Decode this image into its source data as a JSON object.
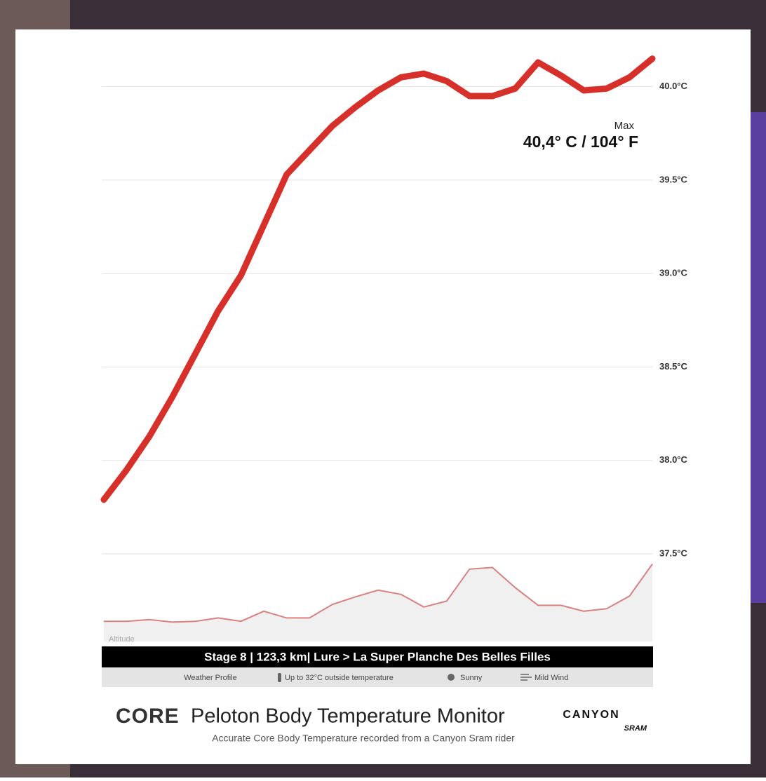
{
  "chart_data": {
    "type": "line",
    "title": "Peloton Body Temperature Monitor",
    "subtitle": "Accurate Core Body Temperature recorded from a Canyon Sram rider",
    "brand": "CORE",
    "sponsor": [
      "CANYON",
      "SRAM"
    ],
    "stage": "Stage 8 | 123,3 km| Lure > La Super Planche Des Belles Filles",
    "weather": [
      "Weather Profile",
      "Up to 32°C outside temperature",
      "Sunny",
      "Mild Wind"
    ],
    "annotation": {
      "label": "Max",
      "text": "40,4° C / 104° F"
    },
    "series": [
      {
        "name": "Body temperature",
        "color": "#d7302a",
        "values": [
          37.79,
          37.95,
          38.13,
          38.34,
          38.57,
          38.8,
          38.99,
          39.26,
          39.53,
          39.66,
          39.79,
          39.89,
          39.98,
          40.05,
          40.07,
          40.03,
          39.95,
          39.95,
          39.99,
          40.13,
          40.06,
          39.98,
          39.99,
          40.05,
          40.15
        ]
      }
    ],
    "altitude": {
      "label": "Altitude",
      "color": "#d98080",
      "ylim": [
        0,
        100
      ],
      "values": [
        24,
        24,
        26,
        23,
        24,
        28,
        24,
        36,
        28,
        28,
        44,
        53,
        61,
        56,
        41,
        48,
        86,
        88,
        64,
        43,
        43,
        36,
        39,
        54,
        92
      ]
    },
    "ylim": [
      37.2,
      40.25
    ],
    "yticks": [
      {
        "value": 37.5,
        "label": "37.5°C"
      },
      {
        "value": 38,
        "label": "38.0°C"
      },
      {
        "value": 38.5,
        "label": "38.5°C"
      },
      {
        "value": 39,
        "label": "39.0°C"
      },
      {
        "value": 39.5,
        "label": "39.5°C"
      },
      {
        "value": 40,
        "label": "40.0°C"
      }
    ],
    "grid": true
  }
}
